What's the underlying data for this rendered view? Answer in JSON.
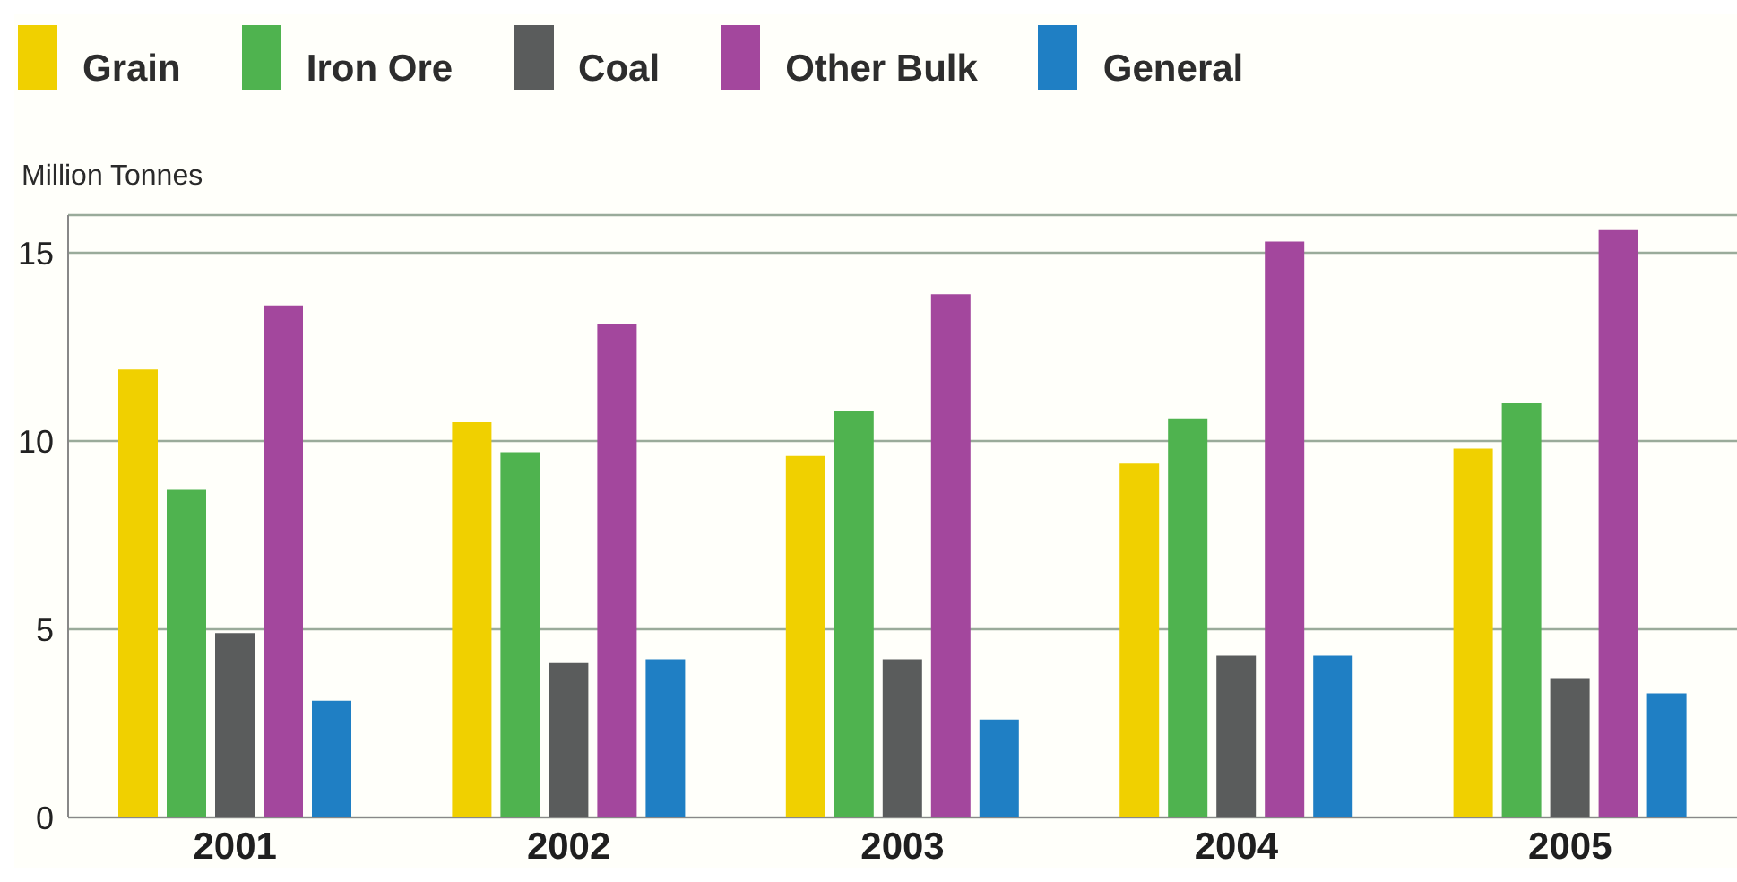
{
  "chart_data": {
    "type": "bar",
    "ylabel": "Million Tonnes",
    "categories": [
      "2001",
      "2002",
      "2003",
      "2004",
      "2005"
    ],
    "series": [
      {
        "name": "Grain",
        "color": "#f0d000",
        "values": [
          11.9,
          10.5,
          9.6,
          9.4,
          9.8
        ]
      },
      {
        "name": "Iron Ore",
        "color": "#4fb34f",
        "values": [
          8.7,
          9.7,
          10.8,
          10.6,
          11.0
        ]
      },
      {
        "name": "Coal",
        "color": "#5a5c5c",
        "values": [
          4.9,
          4.1,
          4.2,
          4.3,
          3.7
        ]
      },
      {
        "name": "Other Bulk",
        "color": "#a3479d",
        "values": [
          13.6,
          13.1,
          13.9,
          15.3,
          15.6
        ]
      },
      {
        "name": "General",
        "color": "#1f7fc4",
        "values": [
          3.1,
          4.2,
          2.6,
          4.3,
          3.3
        ]
      }
    ],
    "ylim": [
      0,
      16
    ],
    "yticks": [
      0,
      5,
      10,
      15
    ],
    "grid": "y",
    "legend": "top left"
  }
}
